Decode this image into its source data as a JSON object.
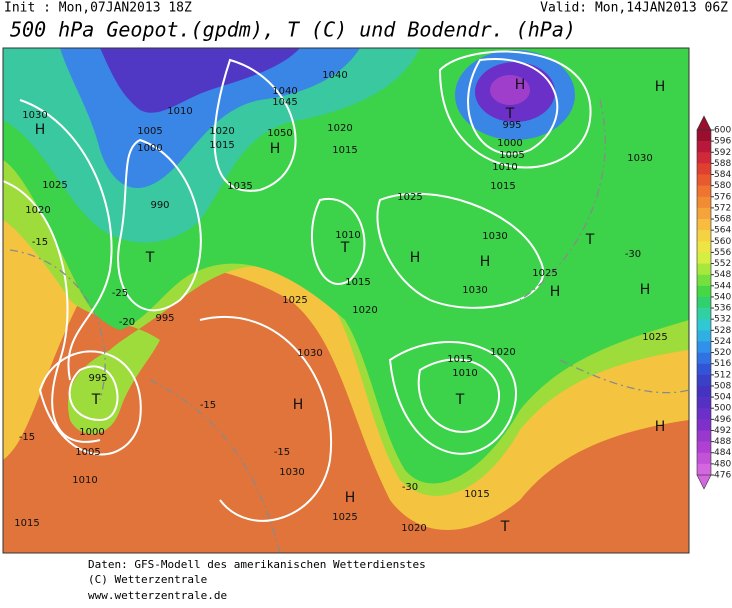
{
  "header": {
    "init": "Init : Mon,07JAN2013 18Z",
    "valid": "Valid: Mon,14JAN2013 06Z",
    "title": "500 hPa Geopot.(gpdm), T (C) und Bodendr. (hPa)"
  },
  "map": {
    "labels": [
      "H",
      "1030",
      "1025",
      "1020",
      "-15",
      "T",
      "990",
      "995",
      "-25",
      "-20",
      "T",
      "995",
      "1000",
      "1005",
      "1010",
      "-15",
      "1015",
      "H",
      "1030",
      "1025",
      "-15",
      "-15",
      "1030",
      "H",
      "1025",
      "T",
      "1015",
      "1020",
      "T",
      "1015",
      "1010",
      "1020",
      "-30",
      "H",
      "T",
      "995",
      "1000",
      "1005",
      "1010",
      "1015",
      "H",
      "1030",
      "H",
      "1050",
      "1040",
      "1045",
      "1040",
      "T",
      "1010",
      "1015",
      "1020",
      "H",
      "1030",
      "H",
      "1025",
      "H",
      "1025",
      "T",
      "H",
      "H",
      "1025",
      "1020",
      "1015",
      "1030",
      "-30",
      "1035",
      "1000",
      "1005",
      "1010",
      "1015",
      "1020"
    ]
  },
  "colorbar": {
    "levels": [
      600,
      596,
      592,
      588,
      584,
      580,
      576,
      572,
      568,
      564,
      560,
      556,
      552,
      548,
      544,
      540,
      536,
      532,
      528,
      524,
      520,
      516,
      512,
      508,
      504,
      500,
      496,
      492,
      488,
      484,
      480,
      476
    ],
    "colors": [
      "#9a0f2e",
      "#b8183a",
      "#d02a3a",
      "#e04030",
      "#e85a2e",
      "#ee7430",
      "#f28c34",
      "#f5a43c",
      "#f7bc40",
      "#f5d242",
      "#eee444",
      "#d4ef42",
      "#a8e83c",
      "#74e040",
      "#46d844",
      "#30d070",
      "#30d0a2",
      "#30c8d2",
      "#30b0e2",
      "#3090ea",
      "#3072e2",
      "#3454d8",
      "#3a40c8",
      "#4632c0",
      "#5630c2",
      "#6a30c8",
      "#8030ca",
      "#9838cc",
      "#b040d2",
      "#c452d8",
      "#d466e0"
    ]
  },
  "footer": {
    "line1": "Daten: GFS-Modell des amerikanischen Wetterdienstes",
    "line2": "(C) Wetterzentrale",
    "line3": "www.wetterzentrale.de"
  }
}
